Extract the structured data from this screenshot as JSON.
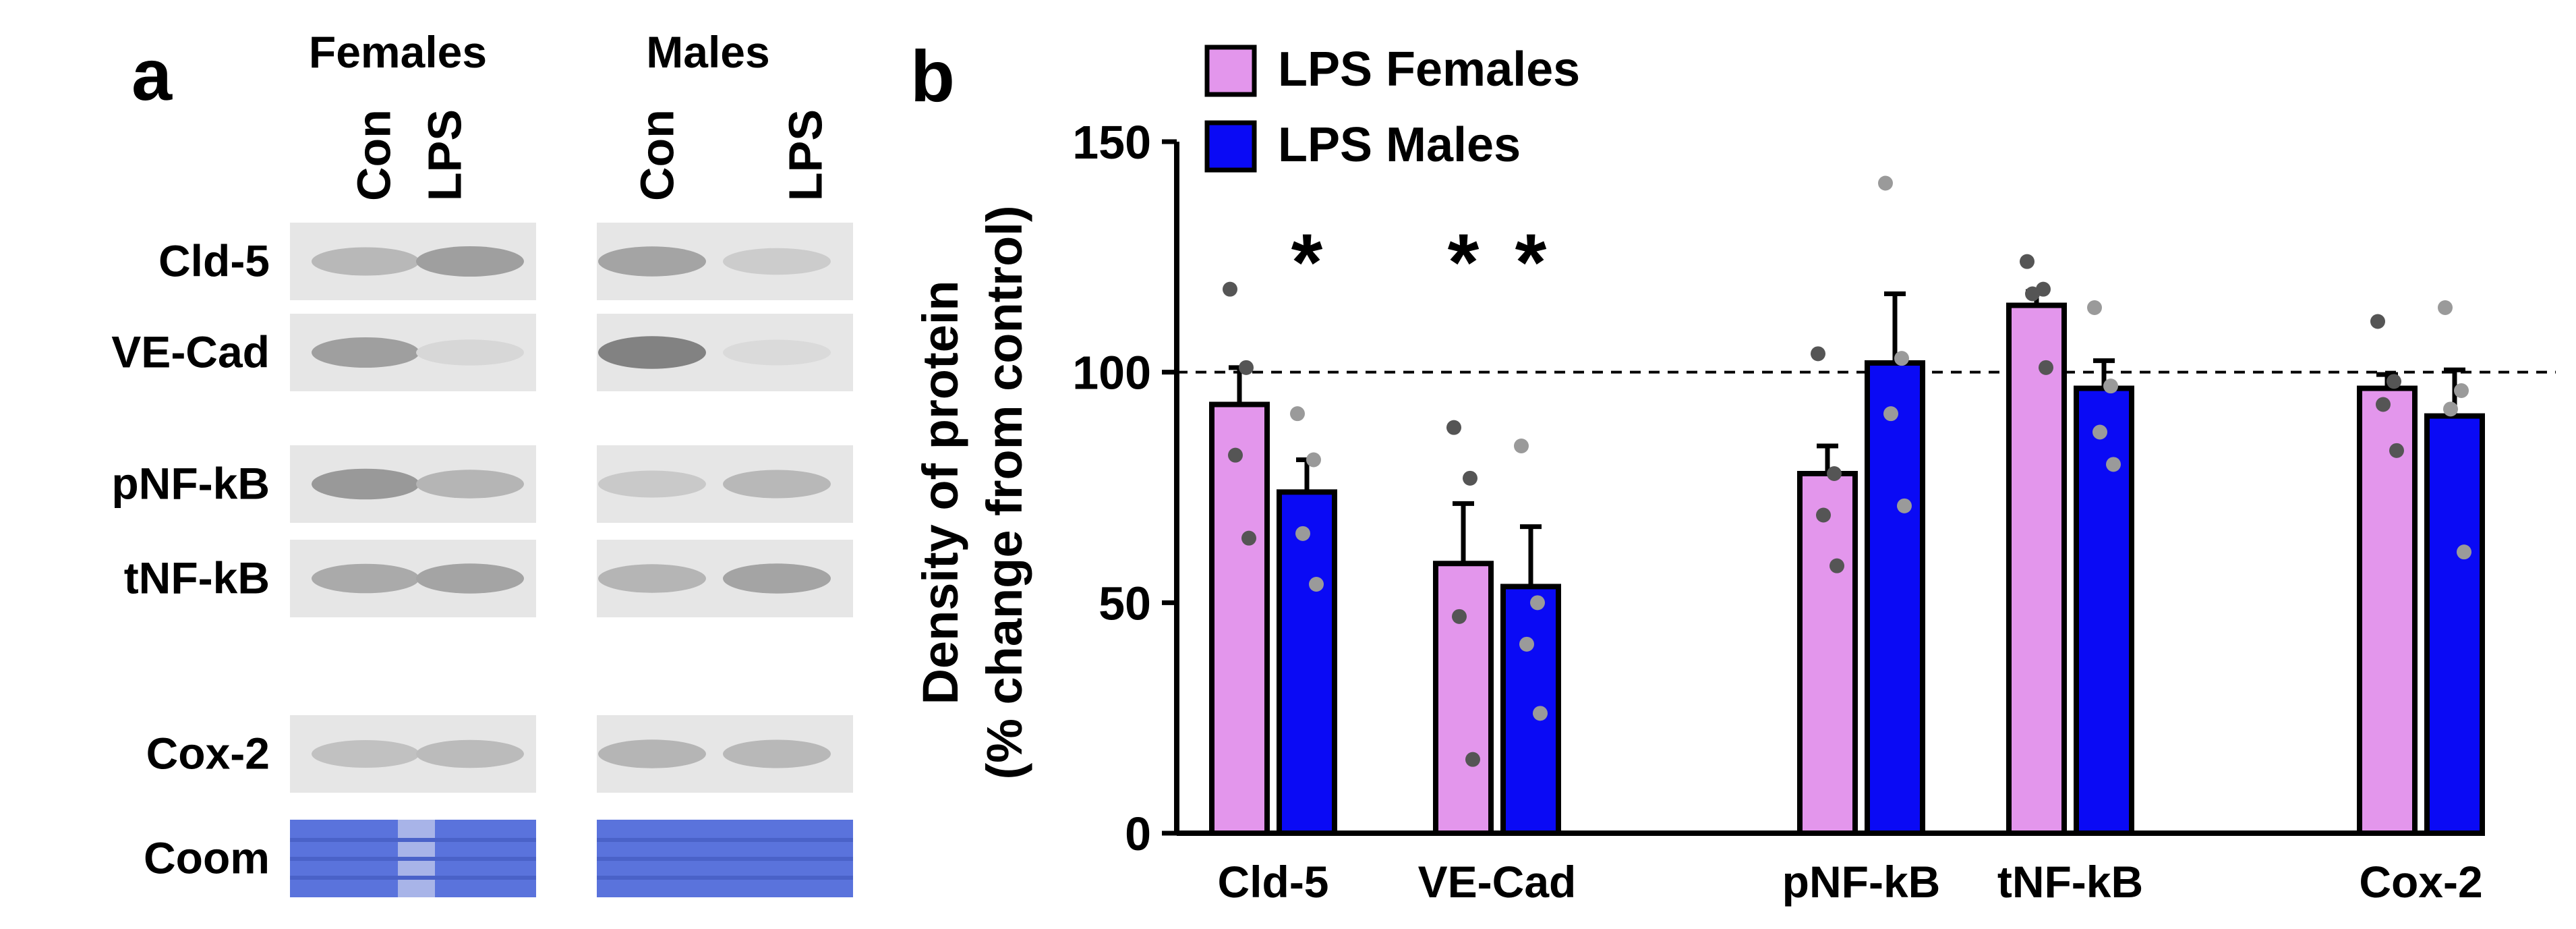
{
  "panel_a": {
    "label": "a",
    "groups": [
      "Females",
      "Males"
    ],
    "lane_labels": [
      "Con",
      "LPS",
      "Con",
      "LPS"
    ],
    "rows": [
      "Cld-5",
      "VE-Cad",
      "pNF-kB",
      "tNF-kB",
      "Cox-2",
      "Coom"
    ],
    "band_intensity": [
      [
        0.3,
        0.45,
        0.42,
        0.18
      ],
      [
        0.45,
        0.12,
        0.62,
        0.1
      ],
      [
        0.48,
        0.32,
        0.2,
        0.3
      ],
      [
        0.38,
        0.42,
        0.32,
        0.42
      ],
      [
        0.25,
        0.28,
        0.32,
        0.3
      ],
      [
        1.0,
        1.0,
        1.0,
        1.0
      ]
    ],
    "colors": {
      "blot_background": "#e6e6e6",
      "band": "#555555",
      "coomassie": "#5a73dc"
    }
  },
  "panel_b": {
    "label": "b",
    "colors": {
      "females": "#e396ec",
      "males": "#0a0af5",
      "point": "#888888"
    },
    "chart_data": {
      "type": "bar",
      "title": "",
      "xlabel": "",
      "ylabel": "Density of protein",
      "ylabel2": "(% change from control)",
      "ylim": [
        0,
        150
      ],
      "yticks": [
        0,
        50,
        100,
        150
      ],
      "reference_line": 100,
      "categories": [
        "Cld-5",
        "VE-Cad",
        "pNF-kB",
        "tNF-kB",
        "Cox-2"
      ],
      "legend": [
        "LPS Females",
        "LPS Males"
      ],
      "legend_position": "top-left",
      "series": [
        {
          "name": "LPS Females",
          "values": [
            93,
            58.5,
            78,
            114.5,
            96.5
          ],
          "sem": [
            8,
            13,
            6,
            3,
            3
          ],
          "points": [
            [
              118,
              101,
              82,
              64
            ],
            [
              88,
              77,
              47,
              16
            ],
            [
              104,
              78,
              69,
              58
            ],
            [
              124,
              118,
              117,
              101
            ],
            [
              111,
              98,
              93,
              83
            ]
          ]
        },
        {
          "name": "LPS Males",
          "values": [
            74,
            53.5,
            102,
            96.5,
            90.5
          ],
          "sem": [
            7,
            13,
            15,
            6,
            10
          ],
          "points": [
            [
              91,
              81,
              65,
              54
            ],
            [
              84,
              50,
              41,
              26
            ],
            [
              141,
              103,
              91,
              71
            ],
            [
              114,
              97,
              87,
              80
            ],
            [
              114,
              96,
              92,
              61
            ]
          ]
        }
      ],
      "annotations": [
        {
          "text": "*",
          "category": "Cld-5",
          "series": "LPS Males"
        },
        {
          "text": "*",
          "category": "VE-Cad",
          "series": "LPS Females"
        },
        {
          "text": "*",
          "category": "VE-Cad",
          "series": "LPS Males"
        }
      ]
    }
  }
}
